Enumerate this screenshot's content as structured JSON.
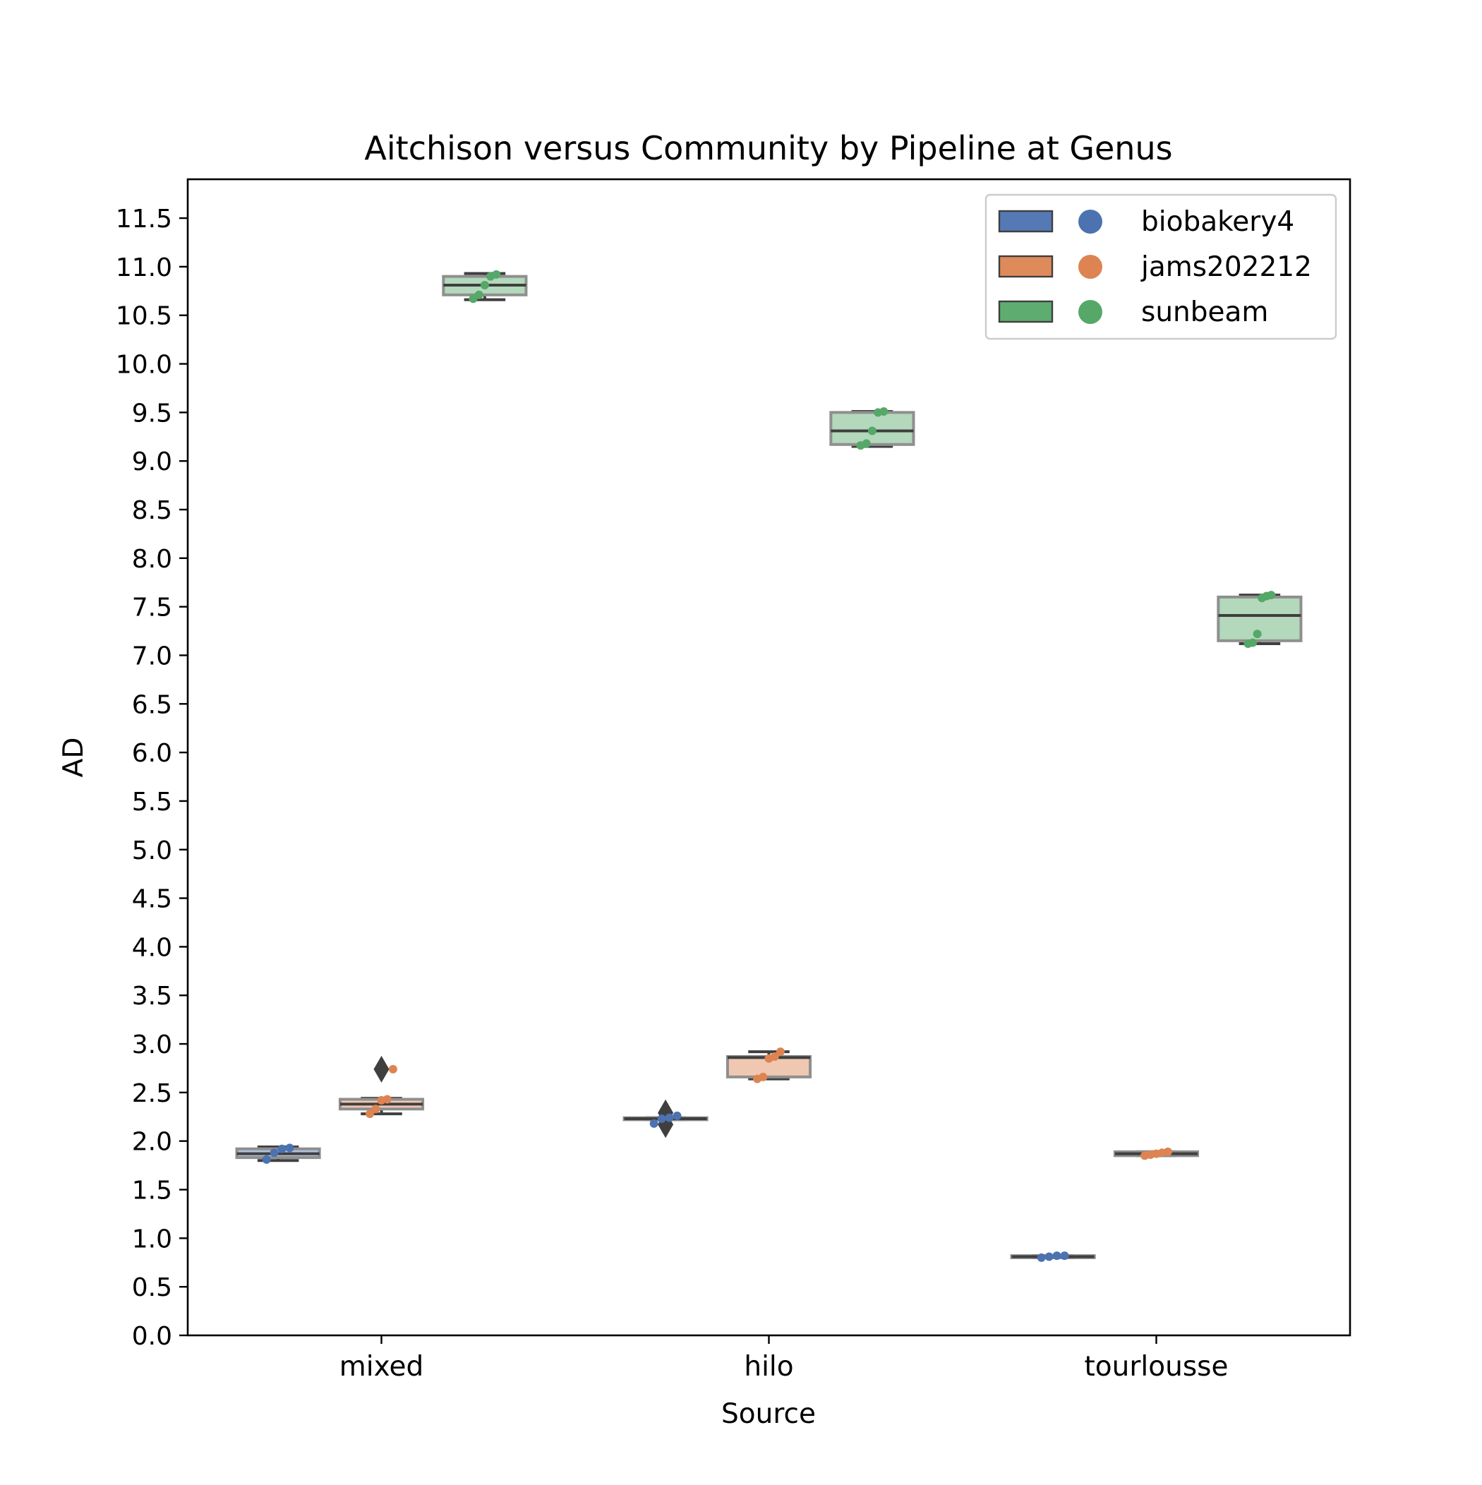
{
  "chart_data": {
    "type": "box",
    "title": "Aitchison versus Community by Pipeline at Genus",
    "xlabel": "Source",
    "ylabel": "AD",
    "categories": [
      "mixed",
      "hilo",
      "tourlousse"
    ],
    "ylim": [
      0,
      11.9
    ],
    "yticks": [
      "0.0",
      "0.5",
      "1.0",
      "1.5",
      "2.0",
      "2.5",
      "3.0",
      "3.5",
      "4.0",
      "4.5",
      "5.0",
      "5.5",
      "6.0",
      "6.5",
      "7.0",
      "7.5",
      "8.0",
      "8.5",
      "9.0",
      "9.5",
      "10.0",
      "10.5",
      "11.0",
      "11.5"
    ],
    "grid": false,
    "legend_position": "top-right",
    "series": [
      {
        "name": "biobakery4",
        "color": "#4c72b0",
        "boxes": [
          {
            "category": "mixed",
            "whisker_low": 1.8,
            "q1": 1.83,
            "median": 1.87,
            "q3": 1.92,
            "whisker_high": 1.94,
            "outliers": [],
            "points": [
              1.81,
              1.88,
              1.92,
              1.93
            ]
          },
          {
            "category": "hilo",
            "whisker_low": 2.22,
            "q1": 2.22,
            "median": 2.23,
            "q3": 2.24,
            "whisker_high": 2.24,
            "outliers": [
              2.17,
              2.29
            ],
            "points": [
              2.18,
              2.23,
              2.24,
              2.26
            ]
          },
          {
            "category": "tourlousse",
            "whisker_low": 0.8,
            "q1": 0.8,
            "median": 0.81,
            "q3": 0.82,
            "whisker_high": 0.82,
            "outliers": [],
            "points": [
              0.8,
              0.81,
              0.82,
              0.82
            ]
          }
        ]
      },
      {
        "name": "jams202212",
        "color": "#dd8452",
        "boxes": [
          {
            "category": "mixed",
            "whisker_low": 2.28,
            "q1": 2.33,
            "median": 2.38,
            "q3": 2.43,
            "whisker_high": 2.44,
            "outliers": [
              2.74
            ],
            "points": [
              2.28,
              2.33,
              2.42,
              2.43,
              2.74
            ]
          },
          {
            "category": "hilo",
            "whisker_low": 2.64,
            "q1": 2.66,
            "median": 2.86,
            "q3": 2.87,
            "whisker_high": 2.92,
            "outliers": [],
            "points": [
              2.64,
              2.66,
              2.85,
              2.87,
              2.92
            ]
          },
          {
            "category": "tourlousse",
            "whisker_low": 1.85,
            "q1": 1.85,
            "median": 1.87,
            "q3": 1.89,
            "whisker_high": 1.89,
            "outliers": [],
            "points": [
              1.85,
              1.86,
              1.87,
              1.88,
              1.89
            ]
          }
        ]
      },
      {
        "name": "sunbeam",
        "color": "#55a868",
        "boxes": [
          {
            "category": "mixed",
            "whisker_low": 10.66,
            "q1": 10.71,
            "median": 10.81,
            "q3": 10.9,
            "whisker_high": 10.93,
            "outliers": [],
            "points": [
              10.67,
              10.71,
              10.81,
              10.9,
              10.92
            ]
          },
          {
            "category": "hilo",
            "whisker_low": 9.15,
            "q1": 9.17,
            "median": 9.31,
            "q3": 9.5,
            "whisker_high": 9.51,
            "outliers": [],
            "points": [
              9.16,
              9.18,
              9.31,
              9.5,
              9.51
            ]
          },
          {
            "category": "tourlousse",
            "whisker_low": 7.12,
            "q1": 7.15,
            "median": 7.41,
            "q3": 7.6,
            "whisker_high": 7.62,
            "outliers": [],
            "points": [
              7.12,
              7.13,
              7.22,
              7.59,
              7.61,
              7.62
            ]
          }
        ]
      }
    ]
  }
}
